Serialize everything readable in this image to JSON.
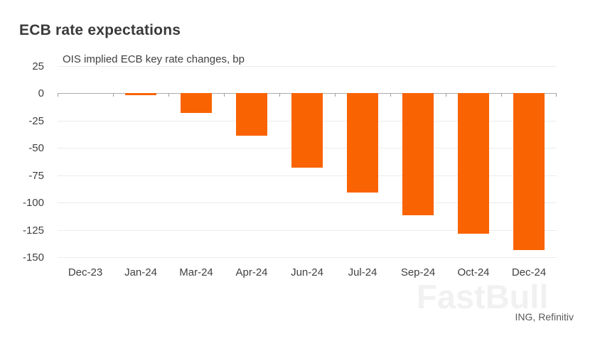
{
  "page": {
    "watermark": "FastBull",
    "source": "ING, Refinitiv"
  },
  "chart_data": {
    "type": "bar",
    "title": "ECB rate expectations",
    "subtitle": "OIS implied ECB key rate changes, bp",
    "categories": [
      "Dec-23",
      "Jan-24",
      "Mar-24",
      "Apr-24",
      "Jun-24",
      "Jul-24",
      "Sep-24",
      "Oct-24",
      "Dec-24"
    ],
    "values": [
      0,
      -2,
      -18,
      -39,
      -68,
      -91,
      -112,
      -129,
      -144
    ],
    "xlabel": "",
    "ylabel": "",
    "ylim": [
      -150,
      25
    ],
    "yticks": [
      25,
      0,
      -25,
      -50,
      -75,
      -100,
      -125,
      -150
    ],
    "grid": true,
    "legend": false,
    "bar_color": "#f96302",
    "gridline_color": "#ececec",
    "zero_axis_color": "#ababab",
    "label_color": "#404040"
  }
}
